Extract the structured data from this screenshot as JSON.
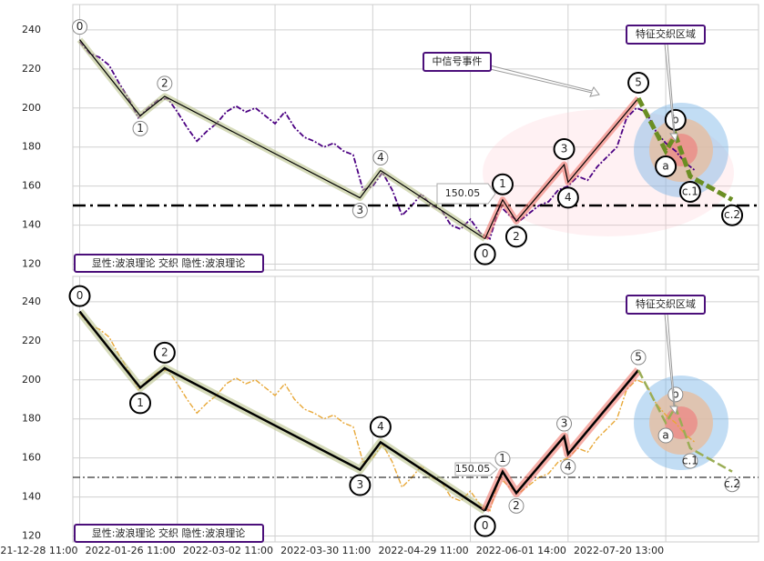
{
  "x_axis": {
    "xlim": [
      -7,
      695
    ],
    "xticks": [
      {
        "value": 0,
        "label": "2021-12-28 11:00"
      },
      {
        "value": 100,
        "label": "2022-01-26 11:00"
      },
      {
        "value": 200,
        "label": "2022-03-02 11:00"
      },
      {
        "value": 300,
        "label": "2022-03-30 11:00"
      },
      {
        "value": 400,
        "label": "2022-04-29 11:00"
      },
      {
        "value": 500,
        "label": "2022-06-01 14:00"
      },
      {
        "value": 600,
        "label": "2022-07-20 13:00"
      }
    ]
  },
  "chart_data": [
    {
      "type": "line",
      "ylim": [
        117,
        253
      ],
      "yticks": [
        120,
        140,
        160,
        180,
        200,
        220,
        240
      ],
      "grid": true,
      "price": {
        "color": "#4b0082",
        "x": [
          0,
          10,
          20,
          30,
          40,
          50,
          60,
          70,
          80,
          90,
          100,
          110,
          120,
          130,
          140,
          150,
          160,
          170,
          180,
          190,
          200,
          210,
          220,
          230,
          240,
          250,
          260,
          270,
          280,
          290,
          300,
          310,
          320,
          330,
          340,
          350,
          360,
          370,
          380,
          390,
          400,
          410,
          420,
          430,
          440,
          450,
          460,
          470,
          480,
          490,
          500,
          510,
          520,
          530,
          540,
          550,
          560,
          570,
          580,
          590,
          600,
          610,
          620,
          630
        ],
        "values": [
          234,
          228,
          226,
          222,
          213,
          205,
          195,
          200,
          204,
          205,
          198,
          190,
          183,
          188,
          192,
          198,
          201,
          198,
          200,
          196,
          192,
          198,
          190,
          185,
          183,
          180,
          182,
          178,
          176,
          158,
          160,
          167,
          158,
          145,
          150,
          156,
          150,
          148,
          140,
          138,
          143,
          136,
          133,
          150,
          145,
          142,
          146,
          150,
          152,
          158,
          160,
          165,
          163,
          170,
          175,
          180,
          195,
          200,
          198,
          188,
          182,
          178,
          172,
          168
        ]
      },
      "waves": {
        "color": "#000000",
        "x": [
          0,
          62,
          87,
          287,
          308,
          415,
          433,
          447,
          496,
          500,
          572,
          600,
          610,
          625,
          668
        ],
        "values": [
          235,
          196,
          206,
          154,
          168,
          133,
          153,
          142,
          171,
          162,
          205,
          178,
          186,
          165,
          153
        ],
        "labels": [
          "0",
          "1",
          "2",
          "3",
          "4",
          "0",
          "1",
          "2",
          "3",
          "4",
          "5",
          "a",
          "b",
          "c.1",
          "c.2"
        ]
      },
      "hline": 150.05,
      "event_label": "中信号事件",
      "zone_label": "特征交织区域",
      "method_label": "显性:波浪理论 交织 隐性:波浪理论"
    },
    {
      "type": "line",
      "ylim": [
        117,
        253
      ],
      "yticks": [
        120,
        140,
        160,
        180,
        200,
        220,
        240
      ],
      "grid": true,
      "price": {
        "color": "#e8a838",
        "x": [
          0,
          10,
          20,
          30,
          40,
          50,
          60,
          70,
          80,
          90,
          100,
          110,
          120,
          130,
          140,
          150,
          160,
          170,
          180,
          190,
          200,
          210,
          220,
          230,
          240,
          250,
          260,
          270,
          280,
          290,
          300,
          310,
          320,
          330,
          340,
          350,
          360,
          370,
          380,
          390,
          400,
          410,
          420,
          430,
          440,
          450,
          460,
          470,
          480,
          490,
          500,
          510,
          520,
          530,
          540,
          550,
          560,
          570,
          580,
          590,
          600,
          610,
          620,
          630
        ],
        "values": [
          234,
          228,
          226,
          222,
          213,
          205,
          195,
          200,
          204,
          205,
          198,
          190,
          183,
          188,
          192,
          198,
          201,
          198,
          200,
          196,
          192,
          198,
          190,
          185,
          183,
          180,
          182,
          178,
          176,
          158,
          160,
          167,
          158,
          145,
          150,
          156,
          150,
          148,
          140,
          138,
          143,
          136,
          133,
          150,
          145,
          142,
          146,
          150,
          152,
          158,
          160,
          165,
          163,
          170,
          175,
          180,
          195,
          200,
          198,
          188,
          182,
          178,
          172,
          168
        ]
      },
      "waves": {
        "color": "#000000",
        "x": [
          0,
          62,
          87,
          287,
          308,
          415,
          433,
          447,
          496,
          500,
          572,
          600,
          610,
          625,
          668
        ],
        "values": [
          235,
          196,
          206,
          154,
          168,
          133,
          153,
          142,
          171,
          162,
          205,
          178,
          186,
          165,
          153
        ],
        "labels": [
          "0",
          "1",
          "2",
          "3",
          "4",
          "0",
          "1",
          "2",
          "3",
          "4",
          "5",
          "a",
          "b",
          "c.1",
          "c.2"
        ]
      },
      "hline": 150.05,
      "zone_label": "特征交织区域",
      "method_label": "显性:波浪理论 交织 隐性:波浪理论"
    }
  ]
}
